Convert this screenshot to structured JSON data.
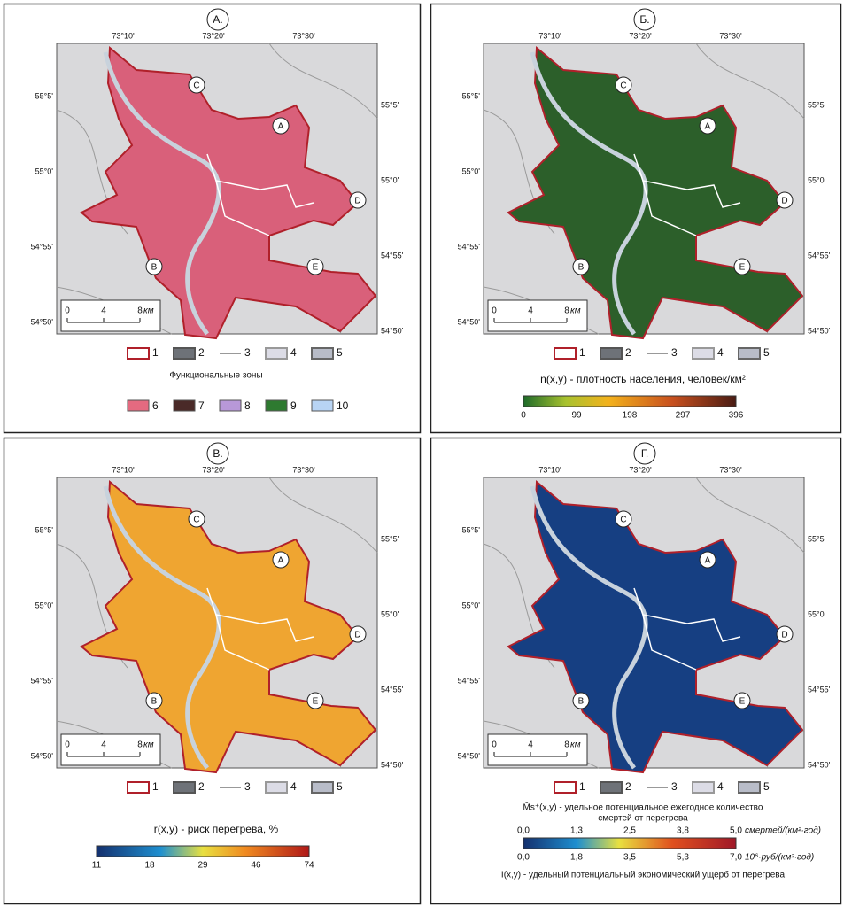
{
  "panels": [
    {
      "letter": "А.",
      "lon_labels": [
        "73°10'",
        "73°20'",
        "73°30'"
      ],
      "lat_labels_left": [
        "55°5'",
        "55°0'",
        "54°55'",
        "54°50'"
      ],
      "lat_labels_right": [
        "55°5'",
        "55°0'",
        "54°55'",
        "54°50'"
      ],
      "sites": [
        "A",
        "C",
        "D",
        "E",
        "B"
      ],
      "scale": [
        "0",
        "4",
        "8",
        "км"
      ],
      "legend": [
        "1",
        "2",
        "3",
        "4",
        "5"
      ],
      "zones_title": "Функциональные зоны",
      "zones": [
        "6",
        "7",
        "8",
        "9",
        "10"
      ]
    },
    {
      "letter": "Б.",
      "lon_labels": [
        "73°10'",
        "73°20'",
        "73°30'"
      ],
      "lat_labels_left": [
        "55°5'",
        "55°0'",
        "54°55'",
        "54°50'"
      ],
      "lat_labels_right": [
        "55°5'",
        "55°0'",
        "54°55'",
        "54°50'"
      ],
      "sites": [
        "A",
        "C",
        "D",
        "E",
        "B"
      ],
      "scale": [
        "0",
        "4",
        "8",
        "км"
      ],
      "legend": [
        "1",
        "2",
        "3",
        "4",
        "5"
      ],
      "scale_title": "n(x,y) - плотность населения, человек/км²",
      "scale_ticks": [
        "0",
        "99",
        "198",
        "297",
        "396"
      ]
    },
    {
      "letter": "В.",
      "lon_labels": [
        "73°10'",
        "73°20'",
        "73°30'"
      ],
      "lat_labels_left": [
        "55°5'",
        "55°0'",
        "54°55'",
        "54°50'"
      ],
      "lat_labels_right": [
        "55°5'",
        "55°0'",
        "54°55'",
        "54°50'"
      ],
      "sites": [
        "A",
        "C",
        "D",
        "E",
        "B"
      ],
      "scale": [
        "0",
        "4",
        "8",
        "км"
      ],
      "legend": [
        "1",
        "2",
        "3",
        "4",
        "5"
      ],
      "scale_title": "r(x,y) - риск перегрева, %",
      "scale_ticks": [
        "11",
        "18",
        "29",
        "46",
        "74"
      ]
    },
    {
      "letter": "Г.",
      "lon_labels": [
        "73°10'",
        "73°20'",
        "73°30'"
      ],
      "lat_labels_left": [
        "55°5'",
        "55°0'",
        "54°55'",
        "54°50'"
      ],
      "lat_labels_right": [
        "55°5'",
        "55°0'",
        "54°55'",
        "54°50'"
      ],
      "sites": [
        "A",
        "C",
        "D",
        "E",
        "B"
      ],
      "scale": [
        "0",
        "4",
        "8",
        "км"
      ],
      "legend": [
        "1",
        "2",
        "3",
        "4",
        "5"
      ],
      "scale_title": [
        "M̄s⁺(x,y) - удельное потенциальное ежегодное количество",
        "смертей от перегрева"
      ],
      "scale_ticks": [
        "0,0",
        "1,3",
        "2,5",
        "3,8",
        "5,0"
      ],
      "scale_unit": "смертей/(км²·год)",
      "scale2_ticks": [
        "0,0",
        "1,8",
        "3,5",
        "5,3",
        "7,0"
      ],
      "scale2_unit": "10⁶·руб/(км²·год)",
      "scale2_title": "I(x,y) - удельный потенциальный экономический ущерб от перегрева"
    }
  ]
}
